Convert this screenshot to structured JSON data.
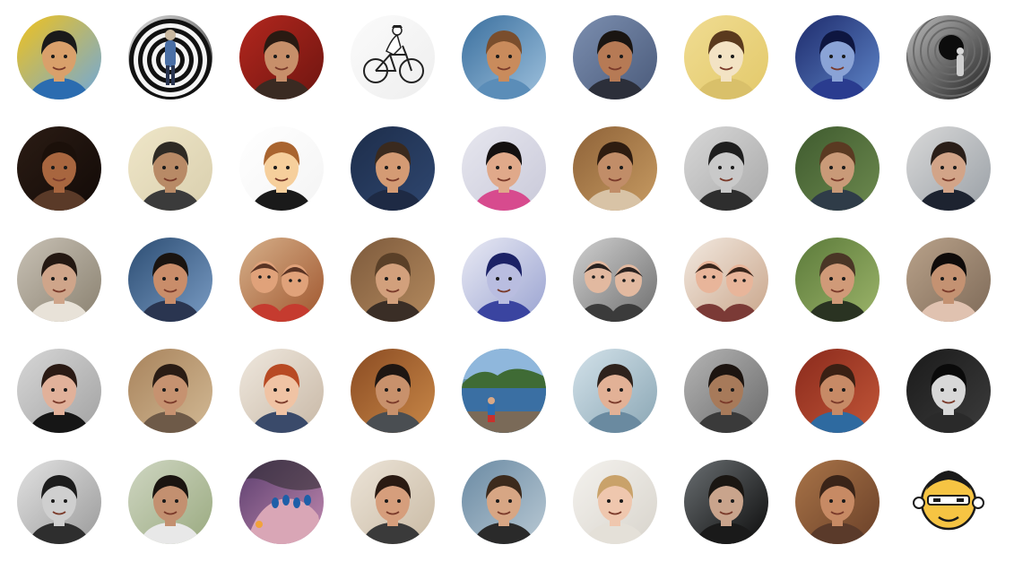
{
  "avatars": [
    {
      "name": "avatar-cartoon-man-popart",
      "kind": "face",
      "bg": [
        "#f1c21b",
        "#6fa8dc"
      ],
      "skin": "#d9a06b",
      "hair": "#1a1a1a",
      "shirt": "#2b6cb0"
    },
    {
      "name": "avatar-spiral-optical",
      "kind": "spiral",
      "bg": [
        "#e5e5e5",
        "#2b2b2b"
      ],
      "skin": "#c9b8a0",
      "hair": "#3a2e22",
      "shirt": "#4a6fa5"
    },
    {
      "name": "avatar-red-background-glasses",
      "kind": "face",
      "bg": [
        "#b3271e",
        "#6e1510"
      ],
      "skin": "#c78f6a",
      "hair": "#2a1a12",
      "shirt": "#3a2a22"
    },
    {
      "name": "avatar-bicycle-sketch",
      "kind": "bike",
      "bg": [
        "#fbfbfb",
        "#eeeeee"
      ],
      "skin": "#ffffff",
      "hair": "#222222",
      "shirt": "#ffffff"
    },
    {
      "name": "avatar-wooden-sculpture",
      "kind": "face",
      "bg": [
        "#3a6f9e",
        "#9ec1dd"
      ],
      "skin": "#c98b5c",
      "hair": "#7a4e2d",
      "shirt": "#5b8db8"
    },
    {
      "name": "avatar-woman-curly-hair",
      "kind": "face",
      "bg": [
        "#7c8fb0",
        "#4a5a7a"
      ],
      "skin": "#b67a55",
      "hair": "#1a1512",
      "shirt": "#2c2f3a"
    },
    {
      "name": "avatar-cartoon-girl-yellow",
      "kind": "face",
      "bg": [
        "#f0dc92",
        "#e3c96a"
      ],
      "skin": "#f3e3c4",
      "hair": "#5a3a1e",
      "shirt": "#d9c06a"
    },
    {
      "name": "avatar-woman-blue-light",
      "kind": "face",
      "bg": [
        "#1d2a6b",
        "#5f86c9"
      ],
      "skin": "#8aa3d6",
      "hair": "#0e1640",
      "shirt": "#2a3c8f"
    },
    {
      "name": "avatar-bw-tunnel",
      "kind": "tunnel",
      "bg": [
        "#bdbdbd",
        "#1e1e1e"
      ],
      "skin": "#d0d0d0",
      "hair": "#111111",
      "shirt": "#6a6a6a"
    },
    {
      "name": "avatar-woman-laughing-dark",
      "kind": "face",
      "bg": [
        "#2b1c14",
        "#120a07"
      ],
      "skin": "#a8663f",
      "hair": "#1b100a",
      "shirt": "#5a3a28"
    },
    {
      "name": "avatar-man-bucket-hat",
      "kind": "face",
      "bg": [
        "#efe6c8",
        "#d9cfae"
      ],
      "skin": "#b88a66",
      "hair": "#2e2a24",
      "shirt": "#3b3b3b"
    },
    {
      "name": "avatar-cartoon-striped-shirt",
      "kind": "face",
      "bg": [
        "#ffffff",
        "#f4f4f4"
      ],
      "skin": "#f6cf9c",
      "hair": "#a9642f",
      "shirt": "#1a1a1a"
    },
    {
      "name": "avatar-man-beard-smiling",
      "kind": "face",
      "bg": [
        "#1d2d4a",
        "#2f4770"
      ],
      "skin": "#d49b74",
      "hair": "#3a2a1e",
      "shirt": "#1e2a44"
    },
    {
      "name": "avatar-woman-smiling-bangs",
      "kind": "face",
      "bg": [
        "#e7e7ef",
        "#c9c9d9"
      ],
      "skin": "#e0a98a",
      "hair": "#141010",
      "shirt": "#d74b8e"
    },
    {
      "name": "avatar-woman-glasses-sepia",
      "kind": "face",
      "bg": [
        "#8e6238",
        "#c79b62"
      ],
      "skin": "#c18d68",
      "hair": "#2e1c10",
      "shirt": "#d8c3a6"
    },
    {
      "name": "avatar-man-bw-smiling",
      "kind": "face",
      "bg": [
        "#d8d8d8",
        "#a8a8a8"
      ],
      "skin": "#c9c9c9",
      "hair": "#1e1e1e",
      "shirt": "#2e2e2e"
    },
    {
      "name": "avatar-man-hat-garden",
      "kind": "face",
      "bg": [
        "#3e5a2e",
        "#6d8a4f"
      ],
      "skin": "#c99a78",
      "hair": "#5a3a22",
      "shirt": "#2f3c48"
    },
    {
      "name": "avatar-man-phone-street",
      "kind": "face",
      "bg": [
        "#d9d9d9",
        "#9aa0a6"
      ],
      "skin": "#d2a488",
      "hair": "#2a1e18",
      "shirt": "#1d2330"
    },
    {
      "name": "avatar-woman-window-light",
      "kind": "face",
      "bg": [
        "#c8c1b5",
        "#8a8170"
      ],
      "skin": "#cfa58a",
      "hair": "#241812",
      "shirt": "#e8e2d8"
    },
    {
      "name": "avatar-man-profile-blue",
      "kind": "face",
      "bg": [
        "#2c4d73",
        "#7a9cc4"
      ],
      "skin": "#c98d6a",
      "hair": "#1a1410",
      "shirt": "#2a3550"
    },
    {
      "name": "avatar-children-table",
      "kind": "group",
      "bg": [
        "#d6b08a",
        "#a0562e"
      ],
      "skin": "#e0a27a",
      "hair": "#5a3424",
      "shirt": "#c53b2f"
    },
    {
      "name": "avatar-man-glasses-pensive",
      "kind": "face",
      "bg": [
        "#7d5a3c",
        "#b48a5e"
      ],
      "skin": "#d2a07c",
      "hair": "#5a4028",
      "shirt": "#3a2e26"
    },
    {
      "name": "avatar-woman-sunglasses-duotone",
      "kind": "face",
      "bg": [
        "#e9eaf4",
        "#9aa3d1"
      ],
      "skin": "#b9bde0",
      "hair": "#1c2266",
      "shirt": "#3a44a0"
    },
    {
      "name": "avatar-couple-kiss",
      "kind": "group",
      "bg": [
        "#d0d0d0",
        "#6e6e6e"
      ],
      "skin": "#e2b9a0",
      "hair": "#2a2220",
      "shirt": "#3b3b3b"
    },
    {
      "name": "avatar-mother-child",
      "kind": "group",
      "bg": [
        "#f2e9e0",
        "#c9a58a"
      ],
      "skin": "#e8b59a",
      "hair": "#3a261c",
      "shirt": "#7b3a36"
    },
    {
      "name": "avatar-man-beard-glasses",
      "kind": "face",
      "bg": [
        "#5b7a3a",
        "#9cb46a"
      ],
      "skin": "#d09a78",
      "hair": "#4a3626",
      "shirt": "#2a3322"
    },
    {
      "name": "avatar-woman-curly-dark",
      "kind": "face",
      "bg": [
        "#b9a28a",
        "#7e6a58"
      ],
      "skin": "#c49272",
      "hair": "#0f0b0a",
      "shirt": "#e0c2b0"
    },
    {
      "name": "avatar-woman-long-hair",
      "kind": "face",
      "bg": [
        "#d7d7d7",
        "#a2a2a2"
      ],
      "skin": "#e1b19a",
      "hair": "#2a1a14",
      "shirt": "#161616"
    },
    {
      "name": "avatar-woman-mosaic-wall",
      "kind": "face",
      "bg": [
        "#a8835c",
        "#d2b994"
      ],
      "skin": "#c69270",
      "hair": "#2a1c14",
      "shirt": "#6e5a48"
    },
    {
      "name": "avatar-woman-redhead",
      "kind": "face",
      "bg": [
        "#efe8de",
        "#c8b8a6"
      ],
      "skin": "#f0c3a4",
      "hair": "#b84a24",
      "shirt": "#3a4a6a"
    },
    {
      "name": "avatar-man-bearded-cafe",
      "kind": "face",
      "bg": [
        "#8a4b22",
        "#c98848"
      ],
      "skin": "#c8916c",
      "hair": "#1e1612",
      "shirt": "#4a4e52"
    },
    {
      "name": "avatar-lake-landscape",
      "kind": "landscape",
      "bg": [
        "#6f9ec9",
        "#3a6a3a"
      ],
      "skin": "#d9a886",
      "hair": "#2e2016",
      "shirt": "#c9302c"
    },
    {
      "name": "avatar-man-sunglasses-selfie",
      "kind": "face",
      "bg": [
        "#d3e2ea",
        "#8aa6b4"
      ],
      "skin": "#e2b196",
      "hair": "#2e221c",
      "shirt": "#6a8aa0"
    },
    {
      "name": "avatar-man-dreadlocks",
      "kind": "face",
      "bg": [
        "#b5b5b5",
        "#6a6a6a"
      ],
      "skin": "#a77a5a",
      "hair": "#1c1410",
      "shirt": "#3a3a3a"
    },
    {
      "name": "avatar-woman-earring-red",
      "kind": "face",
      "bg": [
        "#8a2a1c",
        "#c25638"
      ],
      "skin": "#c78a66",
      "hair": "#3a2014",
      "shirt": "#2e6aa0"
    },
    {
      "name": "avatar-woman-bw-dark",
      "kind": "face",
      "bg": [
        "#1a1a1a",
        "#3c3c3c"
      ],
      "skin": "#d8d8d8",
      "hair": "#0a0a0a",
      "shirt": "#2a2a2a"
    },
    {
      "name": "avatar-man-hat-bw",
      "kind": "face",
      "bg": [
        "#e2e2e2",
        "#9a9a9a"
      ],
      "skin": "#cfcfcf",
      "hair": "#1c1c1c",
      "shirt": "#2e2e2e"
    },
    {
      "name": "avatar-man-bun-profile",
      "kind": "face",
      "bg": [
        "#cfd6c2",
        "#9aaa80"
      ],
      "skin": "#c39070",
      "hair": "#1a1410",
      "shirt": "#e8e8e8"
    },
    {
      "name": "avatar-painted-nails",
      "kind": "hand",
      "bg": [
        "#5b3e6e",
        "#c28ab0"
      ],
      "skin": "#d9a6b6",
      "hair": "#2a1a2a",
      "shirt": "#e3c9d8"
    },
    {
      "name": "avatar-man-aviator-sunglasses",
      "kind": "face",
      "bg": [
        "#ece4d8",
        "#c9baa4"
      ],
      "skin": "#d69e7c",
      "hair": "#2a1a12",
      "shirt": "#3a3a3a"
    },
    {
      "name": "avatar-man-curly-glasses",
      "kind": "face",
      "bg": [
        "#6a8aa3",
        "#b9c9d4"
      ],
      "skin": "#d7a684",
      "hair": "#3c2a1c",
      "shirt": "#2a2a2a"
    },
    {
      "name": "avatar-woman-blonde-glasses",
      "kind": "face",
      "bg": [
        "#f4f2ee",
        "#d8d4cc"
      ],
      "skin": "#efc7ae",
      "hair": "#c9a26a",
      "shirt": "#e4e0d8"
    },
    {
      "name": "avatar-man-round-vignette",
      "kind": "face",
      "bg": [
        "#6a6f72",
        "#0c0c0c"
      ],
      "skin": "#c9a48c",
      "hair": "#1a1612",
      "shirt": "#1a1a1a"
    },
    {
      "name": "avatar-man-beard-portrait",
      "kind": "face",
      "bg": [
        "#a97448",
        "#6a4028"
      ],
      "skin": "#c78a64",
      "hair": "#3a2418",
      "shirt": "#5a3a2a"
    },
    {
      "name": "avatar-cartoon-bald-yellow",
      "kind": "cartoon",
      "bg": [
        "#ffffff",
        "#ffffff"
      ],
      "skin": "#f6c443",
      "hair": "#2a2a2a",
      "shirt": "#f6c443"
    }
  ]
}
